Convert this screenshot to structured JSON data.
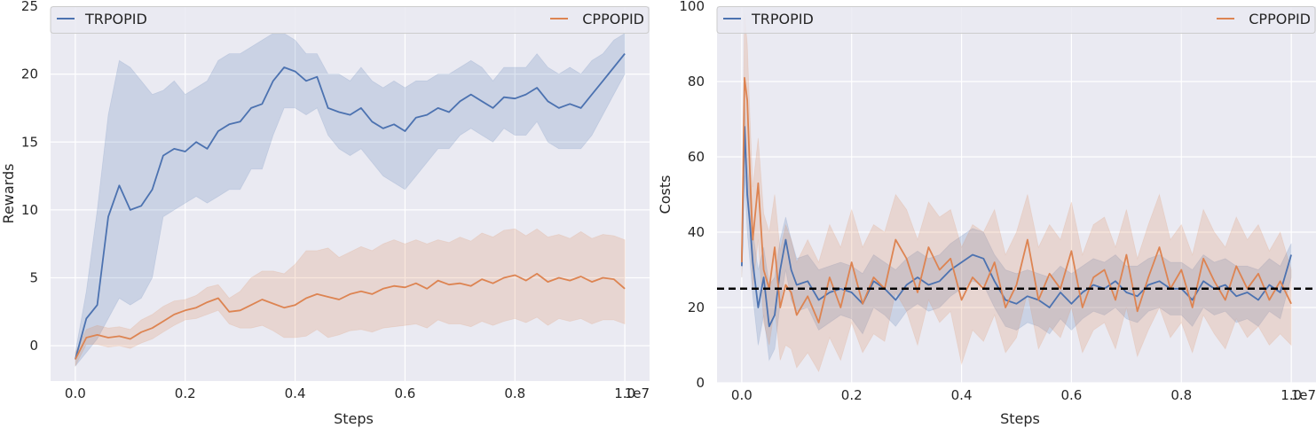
{
  "chart_data": [
    {
      "type": "line",
      "xlabel": "Steps",
      "ylabel": "Rewards",
      "x_multiplier_label": "1e7",
      "xlim": [
        -0.045,
        1.045
      ],
      "ylim": [
        -2.6,
        25
      ],
      "xticks": [
        0.0,
        0.2,
        0.4,
        0.6,
        0.8,
        1.0
      ],
      "xtick_labels": [
        "0.0",
        "0.2",
        "0.4",
        "0.6",
        "0.8",
        "1.0"
      ],
      "yticks": [
        0,
        5,
        10,
        15,
        20,
        25
      ],
      "ytick_labels": [
        "0",
        "5",
        "10",
        "15",
        "20",
        "25"
      ],
      "grid": true,
      "legend_placement": "top",
      "series": [
        {
          "name": "TRPOPID",
          "color": "#4c72b0",
          "x": [
            0.0,
            0.02,
            0.04,
            0.06,
            0.08,
            0.1,
            0.12,
            0.14,
            0.16,
            0.18,
            0.2,
            0.22,
            0.24,
            0.26,
            0.28,
            0.3,
            0.32,
            0.34,
            0.36,
            0.38,
            0.4,
            0.42,
            0.44,
            0.46,
            0.48,
            0.5,
            0.52,
            0.54,
            0.56,
            0.58,
            0.6,
            0.62,
            0.64,
            0.66,
            0.68,
            0.7,
            0.72,
            0.74,
            0.76,
            0.78,
            0.8,
            0.82,
            0.84,
            0.86,
            0.88,
            0.9,
            0.92,
            0.94,
            0.96,
            0.98,
            1.0
          ],
          "y": [
            -1.0,
            2.0,
            3.0,
            9.5,
            11.8,
            10.0,
            10.3,
            11.5,
            14.0,
            14.5,
            14.3,
            15.0,
            14.5,
            15.8,
            16.3,
            16.5,
            17.5,
            17.8,
            19.5,
            20.5,
            20.2,
            19.5,
            19.8,
            17.5,
            17.2,
            17.0,
            17.5,
            16.5,
            16.0,
            16.3,
            15.8,
            16.8,
            17.0,
            17.5,
            17.2,
            18.0,
            18.5,
            18.0,
            17.5,
            18.3,
            18.2,
            18.5,
            19.0,
            18.0,
            17.5,
            17.8,
            17.5,
            18.5,
            19.5,
            20.5,
            21.5
          ],
          "upper": [
            -0.5,
            4.0,
            10.0,
            17.0,
            21.0,
            20.5,
            19.5,
            18.5,
            18.8,
            19.5,
            18.5,
            19.0,
            19.5,
            21.0,
            21.5,
            21.5,
            22.0,
            22.5,
            23.0,
            23.0,
            22.5,
            21.5,
            21.5,
            20.0,
            20.0,
            19.5,
            20.5,
            19.5,
            19.0,
            19.5,
            19.0,
            19.5,
            19.5,
            20.0,
            20.0,
            20.5,
            21.0,
            20.5,
            19.5,
            20.5,
            20.5,
            20.5,
            21.5,
            20.5,
            20.0,
            20.5,
            20.0,
            21.0,
            21.5,
            22.5,
            23.0
          ],
          "lower": [
            -1.5,
            -0.5,
            0.5,
            2.0,
            3.5,
            3.0,
            3.5,
            5.0,
            9.5,
            10.0,
            10.5,
            11.0,
            10.5,
            11.0,
            11.5,
            11.5,
            13.0,
            13.0,
            15.5,
            17.5,
            17.5,
            17.0,
            17.5,
            15.5,
            14.5,
            14.0,
            14.5,
            13.5,
            12.5,
            12.0,
            11.5,
            12.5,
            13.5,
            14.5,
            14.5,
            15.5,
            16.0,
            15.5,
            15.0,
            16.0,
            15.5,
            15.5,
            16.5,
            15.0,
            14.5,
            14.5,
            14.5,
            15.5,
            17.0,
            18.5,
            20.0
          ]
        },
        {
          "name": "CPPOPID",
          "color": "#dd8452",
          "x": [
            0.0,
            0.02,
            0.04,
            0.06,
            0.08,
            0.1,
            0.12,
            0.14,
            0.16,
            0.18,
            0.2,
            0.22,
            0.24,
            0.26,
            0.28,
            0.3,
            0.32,
            0.34,
            0.36,
            0.38,
            0.4,
            0.42,
            0.44,
            0.46,
            0.48,
            0.5,
            0.52,
            0.54,
            0.56,
            0.58,
            0.6,
            0.62,
            0.64,
            0.66,
            0.68,
            0.7,
            0.72,
            0.74,
            0.76,
            0.78,
            0.8,
            0.82,
            0.84,
            0.86,
            0.88,
            0.9,
            0.92,
            0.94,
            0.96,
            0.98,
            1.0
          ],
          "y": [
            -1.0,
            0.6,
            0.8,
            0.6,
            0.7,
            0.5,
            1.0,
            1.3,
            1.8,
            2.3,
            2.6,
            2.8,
            3.2,
            3.5,
            2.5,
            2.6,
            3.0,
            3.4,
            3.1,
            2.8,
            3.0,
            3.5,
            3.8,
            3.6,
            3.4,
            3.8,
            4.0,
            3.8,
            4.2,
            4.4,
            4.3,
            4.6,
            4.2,
            4.8,
            4.5,
            4.6,
            4.4,
            4.9,
            4.6,
            5.0,
            5.2,
            4.8,
            5.3,
            4.7,
            5.0,
            4.8,
            5.1,
            4.7,
            5.0,
            4.9,
            4.2
          ],
          "upper": [
            -0.5,
            1.2,
            1.5,
            1.3,
            1.4,
            1.2,
            1.9,
            2.3,
            2.9,
            3.3,
            3.4,
            3.7,
            4.3,
            4.5,
            3.5,
            4.0,
            5.0,
            5.5,
            5.5,
            5.3,
            6.0,
            7.0,
            7.0,
            7.2,
            6.5,
            6.9,
            7.3,
            7.0,
            7.5,
            7.8,
            7.5,
            7.8,
            7.5,
            7.8,
            7.6,
            8.0,
            7.7,
            8.3,
            8.0,
            8.5,
            8.6,
            8.1,
            8.6,
            8.0,
            8.2,
            7.9,
            8.4,
            7.9,
            8.2,
            8.1,
            7.8
          ],
          "lower": [
            -1.5,
            0.1,
            0.1,
            -0.1,
            0.0,
            -0.2,
            0.2,
            0.5,
            1.0,
            1.5,
            1.9,
            2.0,
            2.3,
            2.6,
            1.6,
            1.3,
            1.3,
            1.5,
            1.1,
            0.6,
            0.6,
            0.7,
            1.2,
            0.6,
            0.8,
            1.1,
            1.2,
            1.0,
            1.3,
            1.4,
            1.5,
            1.6,
            1.3,
            1.9,
            1.6,
            1.6,
            1.4,
            1.8,
            1.5,
            1.8,
            2.0,
            1.7,
            2.1,
            1.5,
            2.0,
            1.8,
            2.0,
            1.6,
            1.9,
            1.9,
            1.6
          ]
        }
      ]
    },
    {
      "type": "line",
      "xlabel": "Steps",
      "ylabel": "Costs",
      "x_multiplier_label": "1e7",
      "xlim": [
        -0.045,
        1.045
      ],
      "ylim": [
        0,
        100
      ],
      "xticks": [
        0.0,
        0.2,
        0.4,
        0.6,
        0.8,
        1.0
      ],
      "xtick_labels": [
        "0.0",
        "0.2",
        "0.4",
        "0.6",
        "0.8",
        "1.0"
      ],
      "yticks": [
        0,
        20,
        40,
        60,
        80,
        100
      ],
      "ytick_labels": [
        "0",
        "20",
        "40",
        "60",
        "80",
        "100"
      ],
      "grid": true,
      "legend_placement": "top",
      "threshold": 25,
      "series": [
        {
          "name": "TRPOPID",
          "color": "#4c72b0",
          "x": [
            0.0,
            0.005,
            0.01,
            0.015,
            0.02,
            0.03,
            0.04,
            0.05,
            0.06,
            0.07,
            0.08,
            0.09,
            0.1,
            0.12,
            0.14,
            0.16,
            0.18,
            0.2,
            0.22,
            0.24,
            0.26,
            0.28,
            0.3,
            0.32,
            0.34,
            0.36,
            0.38,
            0.4,
            0.42,
            0.44,
            0.46,
            0.48,
            0.5,
            0.52,
            0.54,
            0.56,
            0.58,
            0.6,
            0.62,
            0.64,
            0.66,
            0.68,
            0.7,
            0.72,
            0.74,
            0.76,
            0.78,
            0.8,
            0.82,
            0.84,
            0.86,
            0.88,
            0.9,
            0.92,
            0.94,
            0.96,
            0.98,
            1.0
          ],
          "y": [
            31,
            68,
            50,
            42,
            32,
            20,
            28,
            15,
            18,
            30,
            38,
            30,
            26,
            27,
            22,
            24,
            25,
            24,
            21,
            27,
            25,
            22,
            26,
            28,
            26,
            27,
            30,
            32,
            34,
            33,
            27,
            22,
            21,
            23,
            22,
            20,
            24,
            21,
            24,
            26,
            25,
            27,
            24,
            23,
            26,
            27,
            25,
            25,
            22,
            27,
            25,
            26,
            23,
            24,
            22,
            26,
            24,
            34
          ],
          "upper": [
            33,
            75,
            58,
            50,
            40,
            30,
            36,
            26,
            28,
            38,
            44,
            38,
            33,
            34,
            30,
            31,
            32,
            31,
            29,
            34,
            32,
            30,
            33,
            35,
            33,
            34,
            37,
            39,
            41,
            40,
            34,
            30,
            29,
            30,
            29,
            28,
            31,
            29,
            31,
            33,
            32,
            34,
            31,
            31,
            33,
            34,
            32,
            32,
            30,
            34,
            32,
            33,
            31,
            31,
            30,
            33,
            31,
            37
          ],
          "lower": [
            28,
            55,
            40,
            32,
            23,
            10,
            18,
            6,
            9,
            21,
            30,
            22,
            19,
            20,
            14,
            16,
            18,
            17,
            13,
            20,
            18,
            15,
            19,
            21,
            19,
            20,
            23,
            25,
            27,
            26,
            20,
            15,
            14,
            16,
            15,
            13,
            17,
            14,
            17,
            19,
            18,
            20,
            17,
            16,
            19,
            20,
            18,
            18,
            15,
            20,
            18,
            19,
            16,
            17,
            15,
            19,
            17,
            28
          ]
        },
        {
          "name": "CPPOPID",
          "color": "#dd8452",
          "x": [
            0.0,
            0.005,
            0.01,
            0.015,
            0.02,
            0.03,
            0.04,
            0.05,
            0.06,
            0.07,
            0.08,
            0.09,
            0.1,
            0.12,
            0.14,
            0.16,
            0.18,
            0.2,
            0.22,
            0.24,
            0.26,
            0.28,
            0.3,
            0.32,
            0.34,
            0.36,
            0.38,
            0.4,
            0.42,
            0.44,
            0.46,
            0.48,
            0.5,
            0.52,
            0.54,
            0.56,
            0.58,
            0.6,
            0.62,
            0.64,
            0.66,
            0.68,
            0.7,
            0.72,
            0.74,
            0.76,
            0.78,
            0.8,
            0.82,
            0.84,
            0.86,
            0.88,
            0.9,
            0.92,
            0.94,
            0.96,
            0.98,
            1.0
          ],
          "y": [
            32,
            81,
            75,
            55,
            38,
            53,
            30,
            25,
            36,
            20,
            26,
            24,
            18,
            23,
            16,
            28,
            20,
            32,
            21,
            28,
            25,
            38,
            33,
            24,
            36,
            30,
            33,
            22,
            28,
            25,
            32,
            20,
            26,
            38,
            22,
            29,
            25,
            35,
            20,
            28,
            30,
            22,
            34,
            19,
            28,
            36,
            25,
            30,
            20,
            33,
            27,
            22,
            31,
            25,
            29,
            22,
            27,
            21
          ],
          "upper": [
            35,
            98,
            90,
            70,
            52,
            65,
            45,
            40,
            50,
            35,
            42,
            38,
            32,
            38,
            32,
            42,
            36,
            46,
            36,
            42,
            40,
            50,
            46,
            38,
            48,
            44,
            46,
            36,
            42,
            40,
            46,
            34,
            40,
            50,
            36,
            42,
            38,
            48,
            34,
            42,
            44,
            36,
            46,
            33,
            42,
            50,
            38,
            42,
            34,
            46,
            40,
            36,
            44,
            38,
            42,
            35,
            40,
            30
          ],
          "lower": [
            28,
            60,
            55,
            40,
            25,
            38,
            16,
            10,
            20,
            6,
            10,
            9,
            4,
            8,
            3,
            12,
            6,
            16,
            8,
            13,
            11,
            24,
            19,
            10,
            22,
            16,
            19,
            5,
            14,
            11,
            18,
            8,
            12,
            24,
            9,
            15,
            12,
            20,
            8,
            14,
            16,
            9,
            20,
            7,
            14,
            20,
            12,
            16,
            8,
            18,
            13,
            9,
            17,
            12,
            15,
            10,
            13,
            10
          ]
        }
      ]
    }
  ]
}
